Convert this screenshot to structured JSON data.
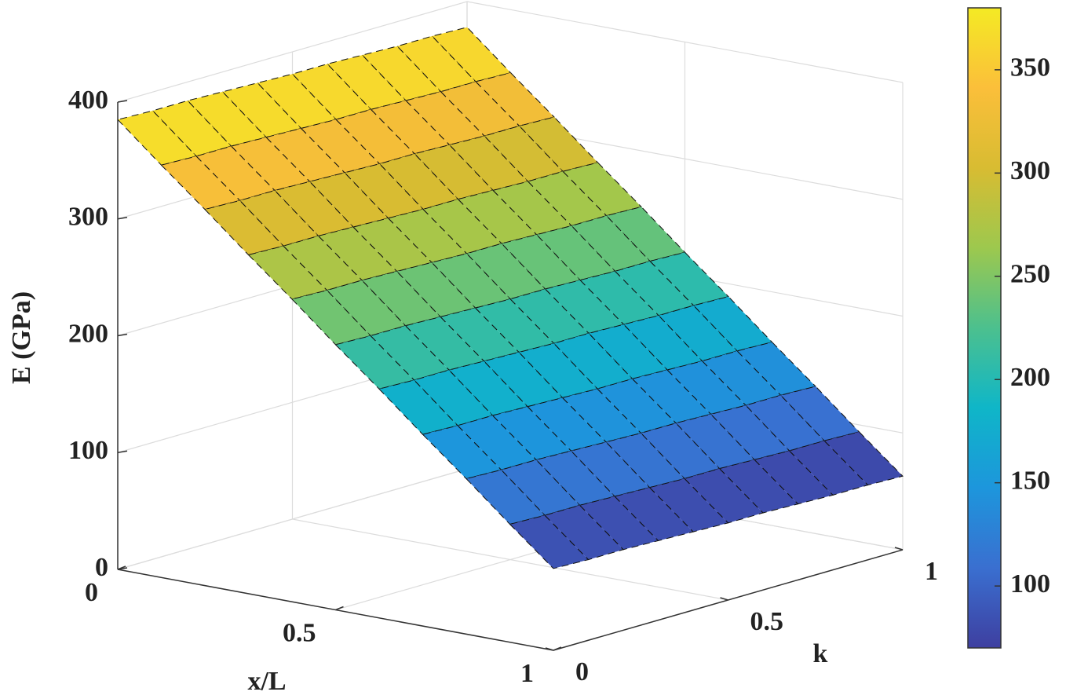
{
  "chart_data": {
    "type": "surface",
    "x_label": "x/L",
    "y_label": "k",
    "z_label": "E (GPa)",
    "x": [
      0,
      0.1,
      0.2,
      0.3,
      0.4,
      0.5,
      0.6,
      0.7,
      0.8,
      0.9,
      1
    ],
    "y": [
      0,
      0.1,
      0.2,
      0.3,
      0.4,
      0.5,
      0.6,
      0.7,
      0.8,
      0.9,
      1
    ],
    "z": [
      [
        385,
        384,
        384,
        383,
        382,
        381,
        381,
        380,
        379,
        379,
        378
      ],
      [
        353,
        352,
        352,
        351,
        350,
        349,
        349,
        348,
        347,
        347,
        346
      ],
      [
        322,
        321,
        321,
        320,
        319,
        318,
        318,
        317,
        316,
        316,
        315
      ],
      [
        290,
        289,
        289,
        288,
        287,
        286,
        286,
        285,
        284,
        284,
        283
      ],
      [
        259,
        258,
        258,
        257,
        256,
        255,
        255,
        254,
        253,
        253,
        252
      ],
      [
        227,
        226,
        226,
        225,
        224,
        223,
        223,
        222,
        221,
        221,
        220
      ],
      [
        196,
        195,
        195,
        194,
        193,
        192,
        192,
        191,
        190,
        190,
        189
      ],
      [
        164,
        163,
        163,
        162,
        161,
        160,
        160,
        159,
        158,
        158,
        157
      ],
      [
        133,
        132,
        132,
        131,
        130,
        129,
        129,
        128,
        127,
        127,
        126
      ],
      [
        101,
        100,
        100,
        99,
        98,
        97,
        97,
        96,
        95,
        95,
        94
      ],
      [
        70,
        69,
        69,
        68,
        67,
        66,
        66,
        65,
        64,
        64,
        63
      ]
    ],
    "xlim": [
      0,
      1
    ],
    "ylim": [
      0,
      1
    ],
    "zlim": [
      0,
      400
    ],
    "xticks": [
      0,
      0.5,
      1
    ],
    "yticks": [
      0,
      0.5,
      1
    ],
    "zticks": [
      0,
      100,
      200,
      300,
      400
    ],
    "colorbar_lim": [
      70,
      380
    ],
    "colorbar_ticks": [
      100,
      150,
      200,
      250,
      300,
      350
    ],
    "colormap": [
      "#3e3fa0",
      "#3a6fd0",
      "#1d96dc",
      "#0fb6c8",
      "#4cc08e",
      "#9dc84e",
      "#d8bc32",
      "#fbbf3a",
      "#f4ea24"
    ],
    "grid": true
  }
}
